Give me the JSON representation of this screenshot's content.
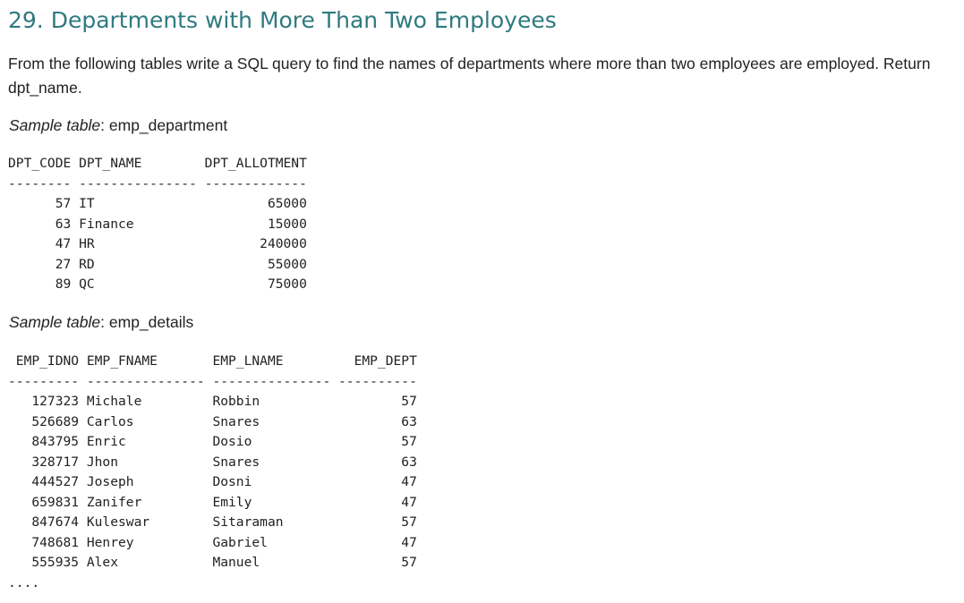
{
  "title": "29. Departments with More Than Two Employees",
  "description": "From the following tables write a SQL query to find the names of departments where more than two employees are employed. Return dpt_name.",
  "tables": [
    {
      "label_italic": "Sample table",
      "label_sep": ": ",
      "label_name": "emp_department",
      "header": "DPT_CODE DPT_NAME        DPT_ALLOTMENT",
      "separator": "-------- --------------- -------------",
      "rows": [
        "      57 IT                      65000",
        "      63 Finance                 15000",
        "      47 HR                     240000",
        "      27 RD                      55000",
        "      89 QC                      75000"
      ]
    },
    {
      "label_italic": "Sample table",
      "label_sep": ": ",
      "label_name": "emp_details",
      "header": " EMP_IDNO EMP_FNAME       EMP_LNAME         EMP_DEPT",
      "separator": "--------- --------------- --------------- ----------",
      "rows": [
        "   127323 Michale         Robbin                  57",
        "   526689 Carlos          Snares                  63",
        "   843795 Enric           Dosio                   57",
        "   328717 Jhon            Snares                  63",
        "   444527 Joseph          Dosni                   47",
        "   659831 Zanifer         Emily                   47",
        "   847674 Kuleswar        Sitaraman               57",
        "   748681 Henrey          Gabriel                 47",
        "   555935 Alex            Manuel                  57"
      ],
      "trailer": "...."
    }
  ]
}
